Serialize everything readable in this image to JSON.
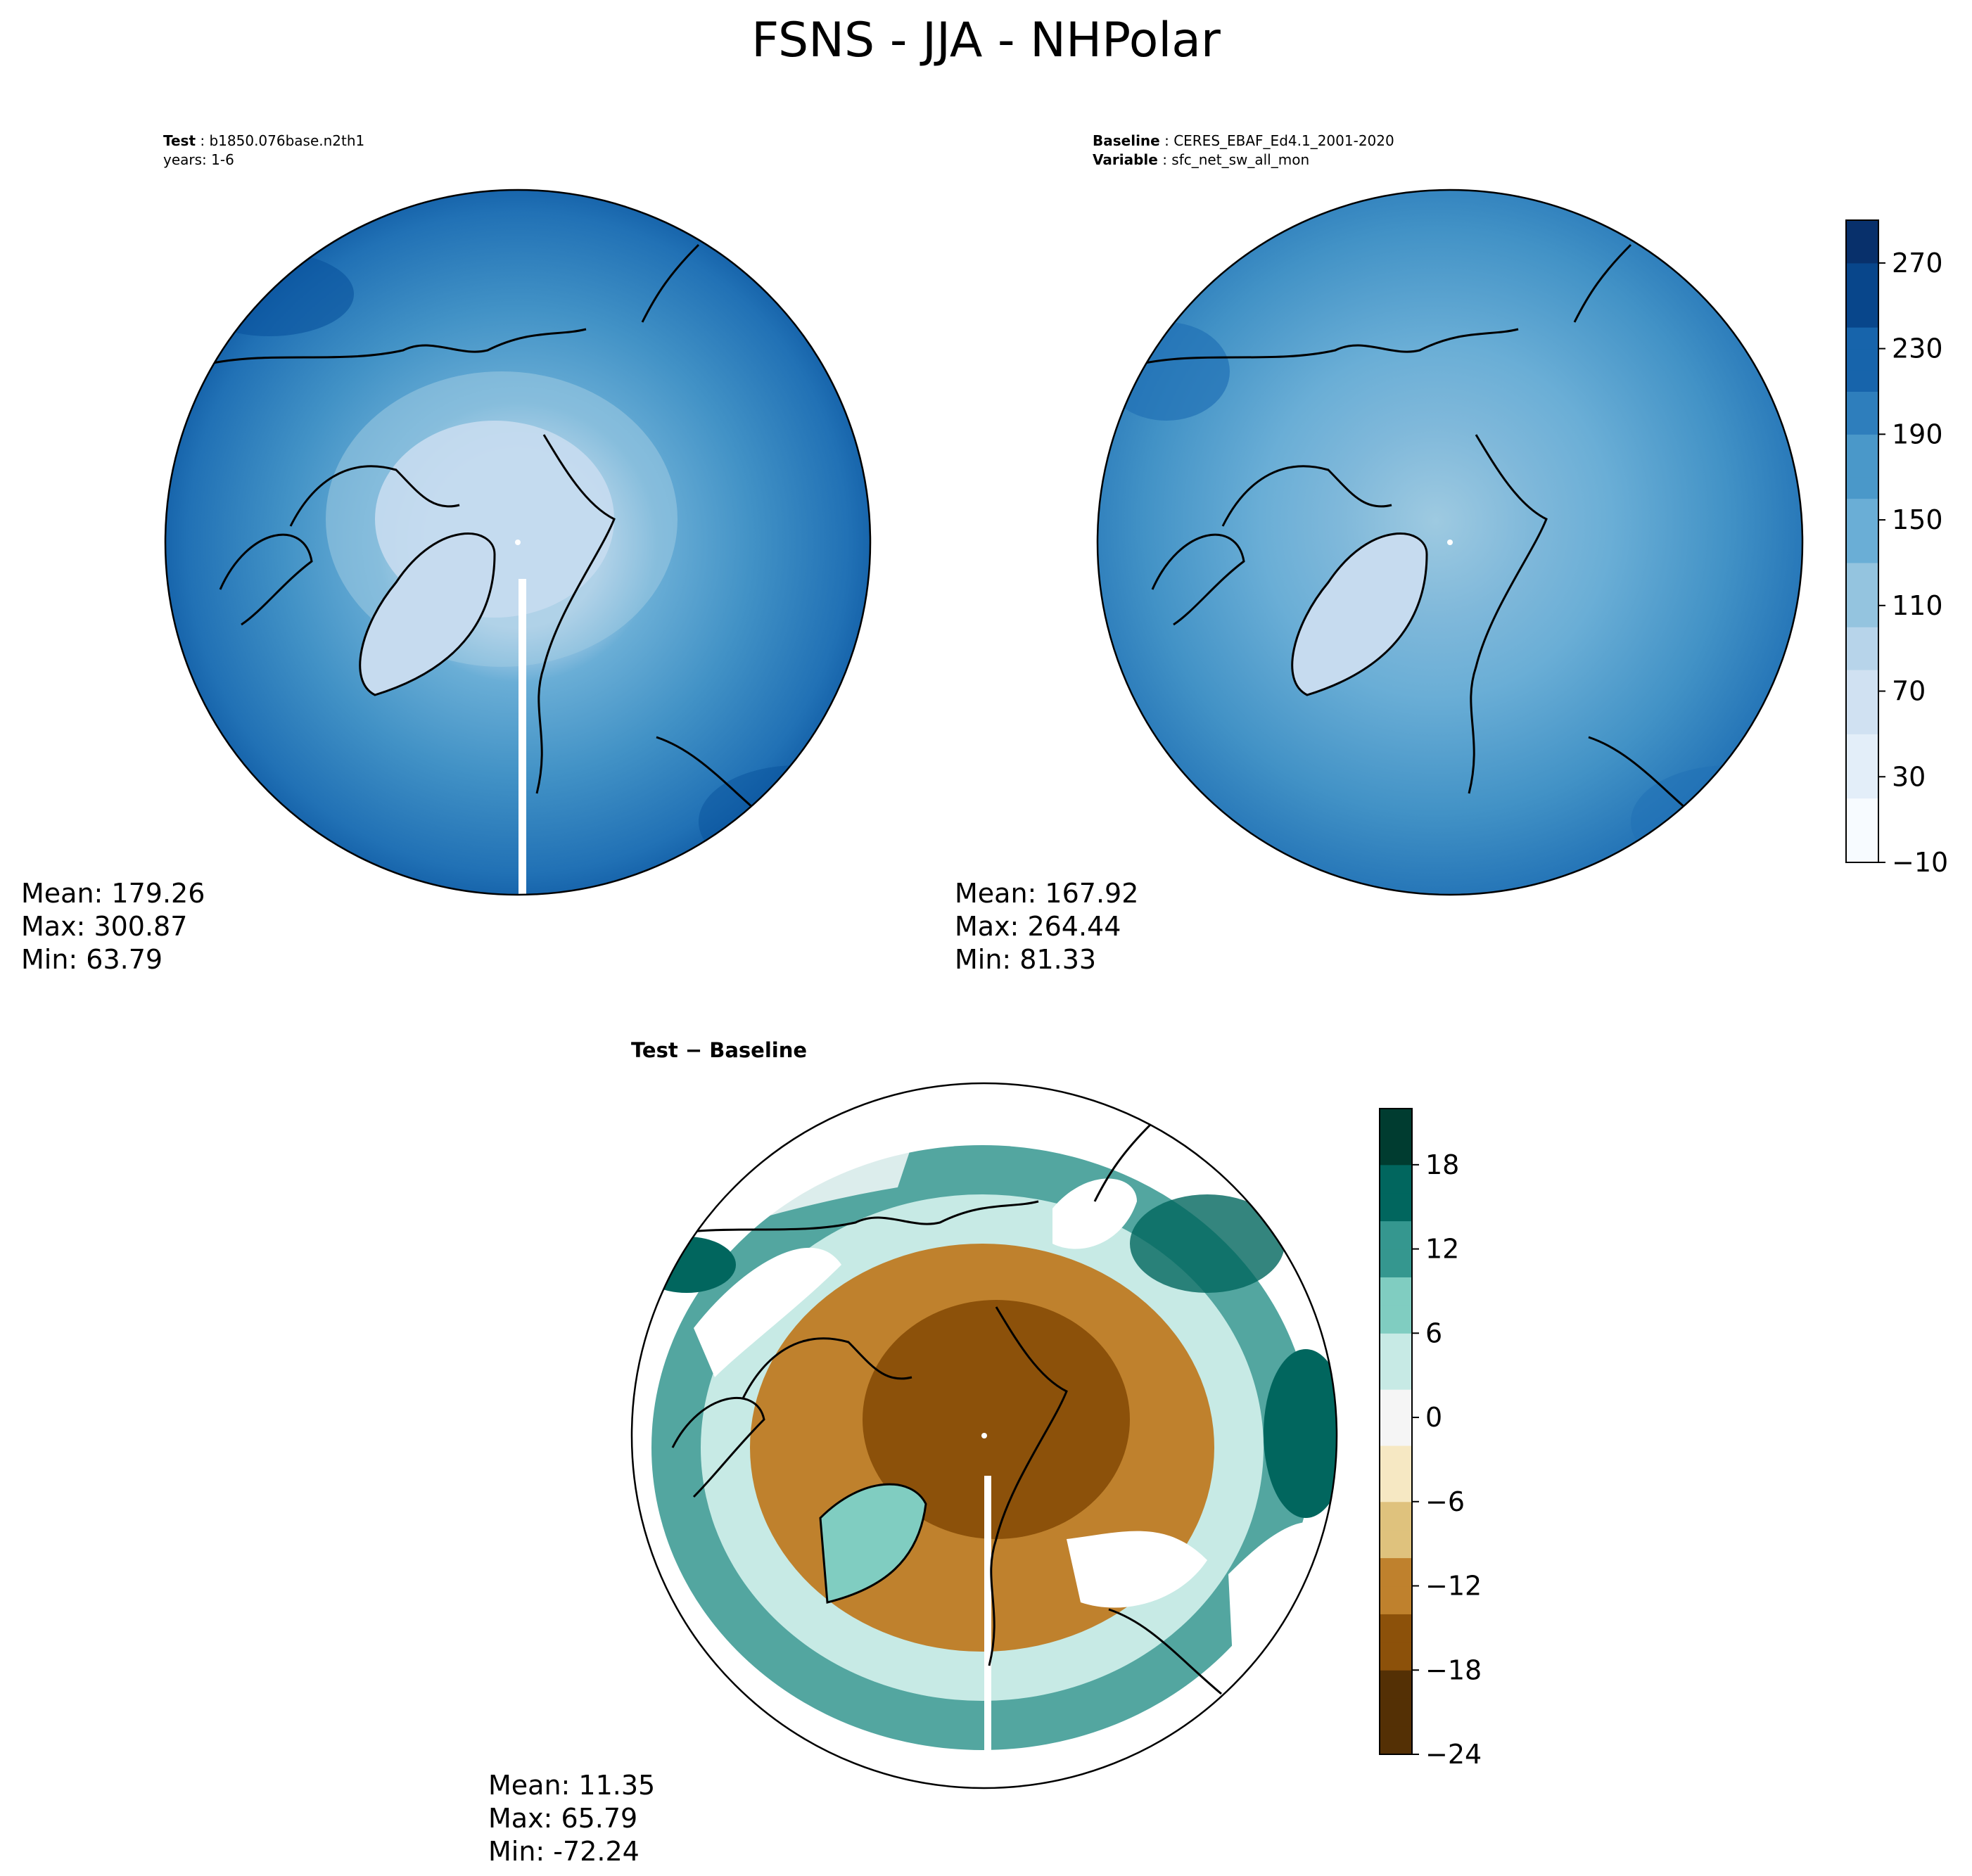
{
  "figure": {
    "title": "FSNS - JJA - NHPolar"
  },
  "test_panel": {
    "label": "Test",
    "name": "b1850.076base.n2th1",
    "years": "years: 1-6",
    "stats": {
      "mean": "Mean: 179.26",
      "max": "Max: 300.87",
      "min": "Min: 63.79"
    }
  },
  "baseline_panel": {
    "label": "Baseline",
    "name": "CERES_EBAF_Ed4.1_2001-2020",
    "variable_label": "Variable",
    "variable": "sfc_net_sw_all_mon",
    "stats": {
      "mean": "Mean: 167.92",
      "max": "Max: 264.44",
      "min": "Min: 81.33"
    }
  },
  "diff_panel": {
    "title": "Test − Baseline",
    "stats": {
      "mean": "Mean: 11.35",
      "max": "Max: 65.79",
      "min": "Min: -72.24"
    }
  },
  "chart_data": [
    {
      "type": "heatmap",
      "panel": "test",
      "projection": "north polar stereographic",
      "colormap": [
        "#f7fbff",
        "#e3eef9",
        "#d0e1f2",
        "#b7d4ea",
        "#94c4df",
        "#6aaed6",
        "#4a98c9",
        "#2e7ebc",
        "#1764ab",
        "#08468b",
        "#08306b"
      ],
      "colorbar_ticks": [
        -10,
        30,
        70,
        110,
        150,
        190,
        230,
        270
      ],
      "colorbar_range": [
        -10,
        290
      ],
      "mean": 179.26,
      "max": 300.87,
      "min": 63.79
    },
    {
      "type": "heatmap",
      "panel": "baseline",
      "projection": "north polar stereographic",
      "colorbar_ticks": [
        -10,
        30,
        70,
        110,
        150,
        190,
        230,
        270
      ],
      "colorbar_range": [
        -10,
        290
      ],
      "mean": 167.92,
      "max": 264.44,
      "min": 81.33
    },
    {
      "type": "heatmap",
      "panel": "difference",
      "projection": "north polar stereographic",
      "colormap": [
        "#543005",
        "#8c510a",
        "#bf812d",
        "#dfc27d",
        "#f6e8c3",
        "#f5f5f5",
        "#c7eae5",
        "#80cdc1",
        "#35978f",
        "#01665e",
        "#003c30"
      ],
      "colorbar_ticks": [
        -24,
        -18,
        -12,
        -6,
        0,
        6,
        12,
        18
      ],
      "colorbar_range": [
        -24,
        22
      ],
      "mean": 11.35,
      "max": 65.79,
      "min": -72.24
    }
  ]
}
